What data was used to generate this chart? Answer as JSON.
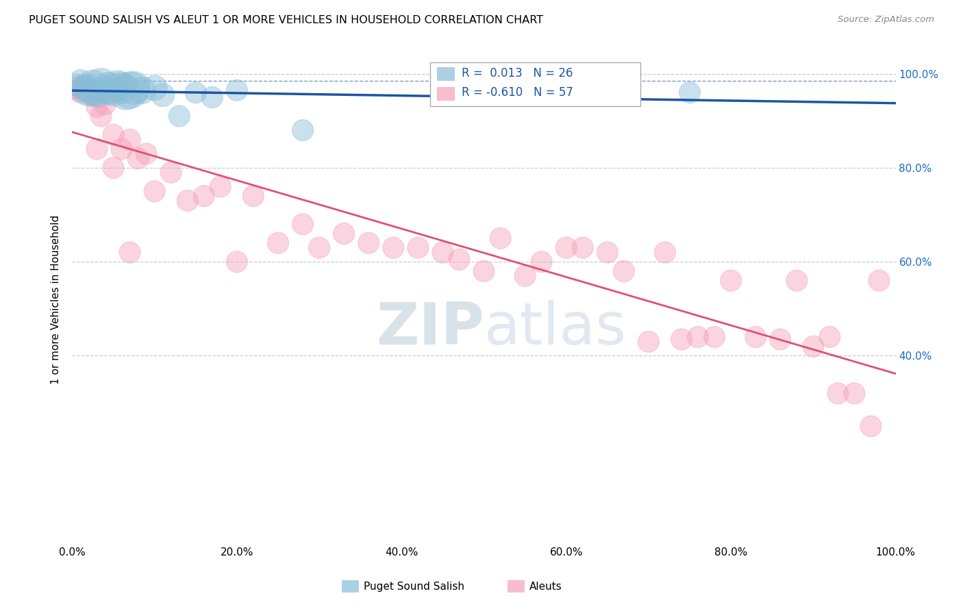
{
  "title": "PUGET SOUND SALISH VS ALEUT 1 OR MORE VEHICLES IN HOUSEHOLD CORRELATION CHART",
  "source": "Source: ZipAtlas.com",
  "ylabel": "1 or more Vehicles in Household",
  "r_blue": 0.013,
  "n_blue": 26,
  "r_pink": -0.61,
  "n_pink": 57,
  "blue_color": "#89bdd8",
  "pink_color": "#f4a0b8",
  "trend_blue_color": "#1a56a0",
  "trend_pink_color": "#e05070",
  "watermark_color": "#ccdde8",
  "background_color": "#ffffff",
  "grid_color": "#cccccc",
  "blue_x": [
    0.5,
    1.0,
    1.5,
    2.0,
    2.5,
    3.0,
    3.5,
    4.0,
    4.5,
    5.0,
    5.5,
    6.0,
    6.5,
    7.0,
    7.5,
    8.5,
    10.0,
    11.0,
    13.0,
    15.0,
    17.0,
    20.0,
    28.0,
    45.0,
    63.0,
    75.0
  ],
  "blue_y": [
    97.5,
    98.5,
    97.0,
    96.5,
    97.0,
    96.0,
    97.5,
    96.5,
    97.0,
    96.0,
    97.5,
    97.0,
    96.0,
    96.5,
    97.0,
    96.5,
    97.0,
    95.5,
    91.0,
    96.0,
    95.0,
    96.5,
    88.0,
    96.5,
    96.0,
    96.0
  ],
  "blue_size": [
    25,
    28,
    35,
    55,
    70,
    50,
    65,
    45,
    55,
    40,
    50,
    55,
    65,
    75,
    60,
    40,
    35,
    30,
    25,
    25,
    25,
    25,
    25,
    25,
    25,
    25
  ],
  "pink_x": [
    0.5,
    0.8,
    1.0,
    1.3,
    1.6,
    2.0,
    2.5,
    3.0,
    3.5,
    4.0,
    5.0,
    6.0,
    7.0,
    8.0,
    9.0,
    10.0,
    12.0,
    14.0,
    16.0,
    18.0,
    20.0,
    22.0,
    25.0,
    28.0,
    30.0,
    33.0,
    36.0,
    39.0,
    42.0,
    45.0,
    47.0,
    50.0,
    52.0,
    55.0,
    57.0,
    60.0,
    62.0,
    65.0,
    67.0,
    70.0,
    72.0,
    74.0,
    76.0,
    78.0,
    80.0,
    83.0,
    86.0,
    88.0,
    90.0,
    92.0,
    93.0,
    95.0,
    97.0,
    98.0,
    3.0,
    5.0,
    7.0
  ],
  "pink_y": [
    97.0,
    96.5,
    96.0,
    97.5,
    96.5,
    96.0,
    95.5,
    93.0,
    91.0,
    93.5,
    87.0,
    84.0,
    86.0,
    82.0,
    83.0,
    75.0,
    79.0,
    73.0,
    74.0,
    76.0,
    60.0,
    74.0,
    64.0,
    68.0,
    63.0,
    66.0,
    64.0,
    63.0,
    63.0,
    62.0,
    60.5,
    58.0,
    65.0,
    57.0,
    60.0,
    63.0,
    63.0,
    62.0,
    58.0,
    43.0,
    62.0,
    43.5,
    44.0,
    44.0,
    56.0,
    44.0,
    43.5,
    56.0,
    42.0,
    44.0,
    32.0,
    32.0,
    25.0,
    56.0,
    84.0,
    80.0,
    62.0
  ],
  "pink_size": [
    25,
    25,
    25,
    25,
    25,
    25,
    25,
    25,
    25,
    25,
    25,
    25,
    25,
    25,
    25,
    25,
    25,
    25,
    25,
    25,
    25,
    25,
    25,
    25,
    25,
    25,
    25,
    25,
    25,
    25,
    25,
    25,
    25,
    25,
    25,
    25,
    25,
    25,
    25,
    25,
    25,
    25,
    25,
    25,
    25,
    25,
    25,
    25,
    25,
    25,
    25,
    25,
    25,
    25,
    25,
    25,
    25
  ],
  "xlim": [
    0,
    100
  ],
  "ylim": [
    0,
    104
  ],
  "dashed_ref_y": 98.5,
  "ytick_positions": [
    40,
    60,
    80,
    100
  ],
  "ytick_labels": [
    "40.0%",
    "60.0%",
    "80.0%",
    "100.0%"
  ],
  "xtick_positions": [
    0,
    20,
    40,
    60,
    80,
    100
  ],
  "xtick_labels": [
    "0.0%",
    "20.0%",
    "40.0%",
    "60.0%",
    "80.0%",
    "100.0%"
  ],
  "legend_label_blue": "Puget Sound Salish",
  "legend_label_pink": "Aleuts"
}
